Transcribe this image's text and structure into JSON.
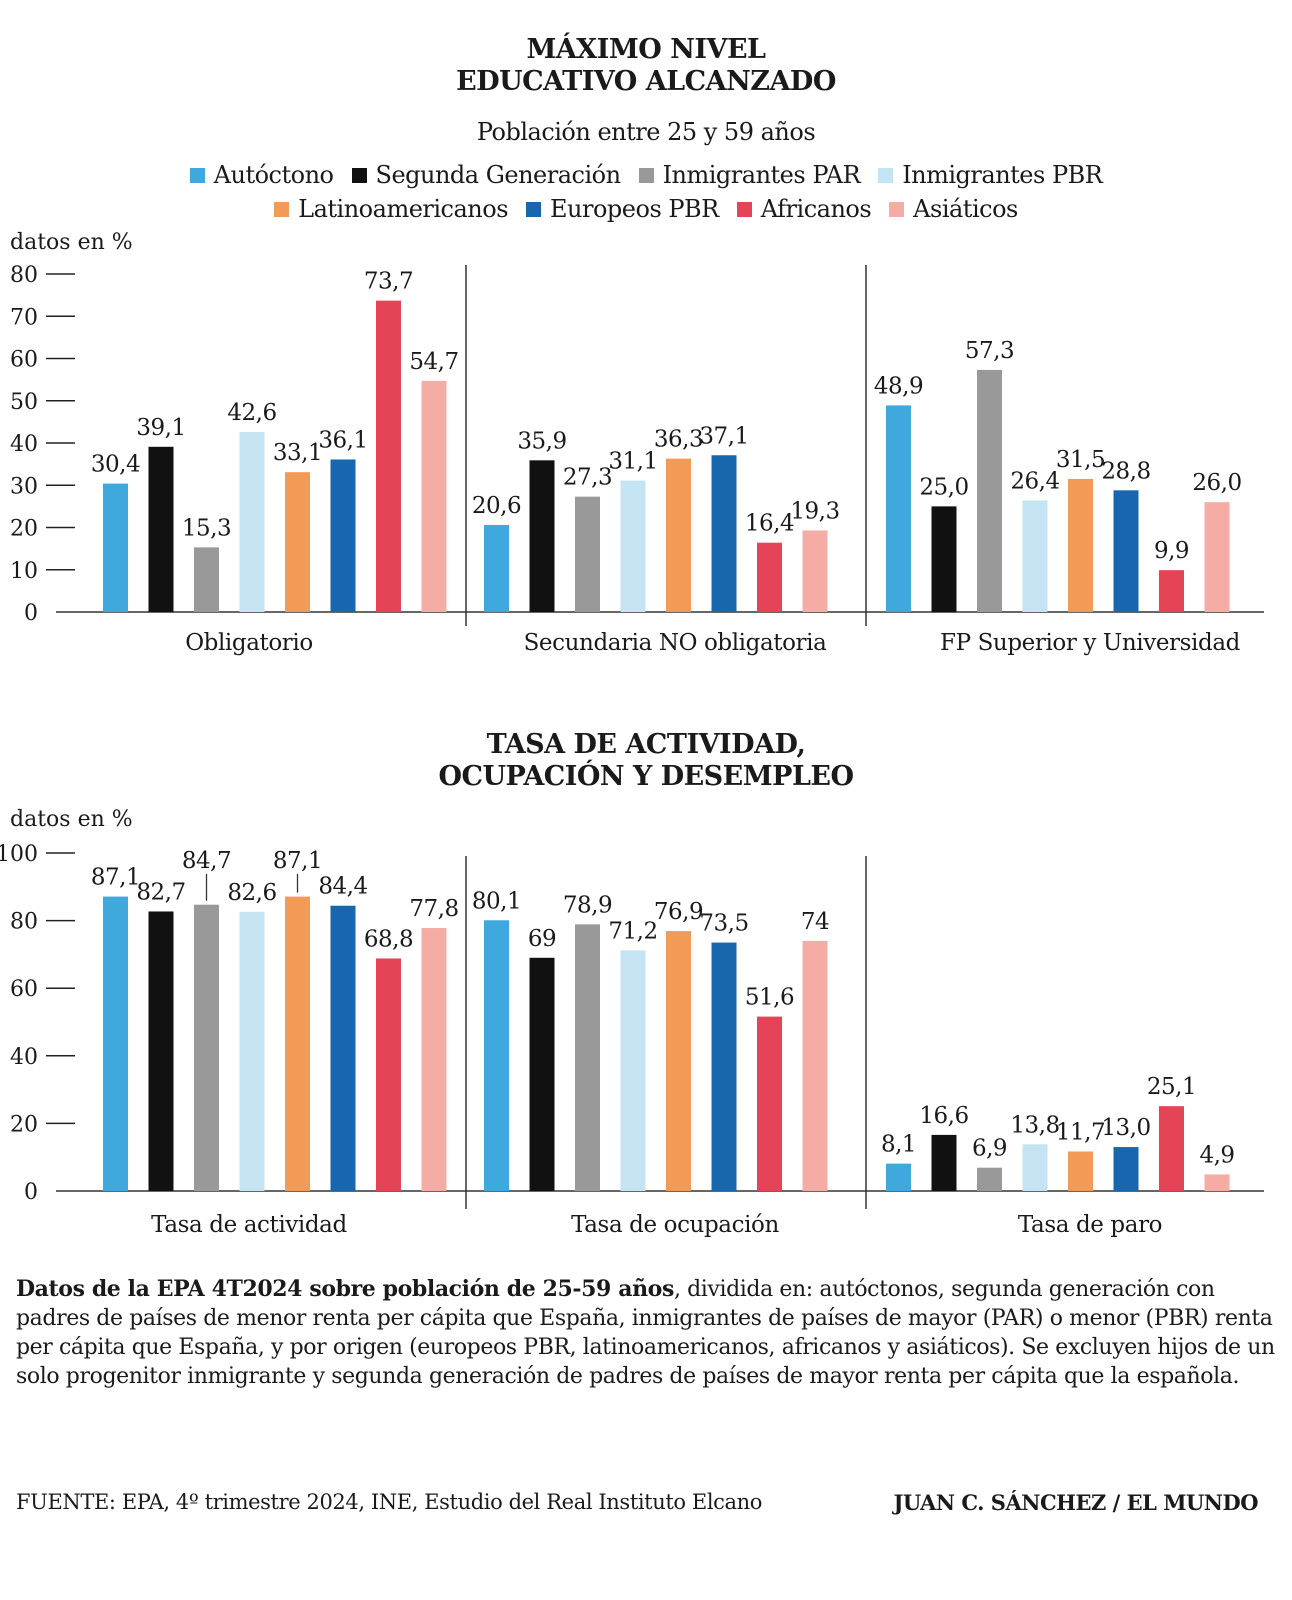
{
  "chart1": {
    "title_lines": [
      "MÁXIMO NIVEL",
      "EDUCATIVO ALCANZADO"
    ],
    "subtitle": "Población entre 25 y 59 años",
    "unit_label": "datos en %"
  },
  "chart2": {
    "title_lines": [
      "TASA DE ACTIVIDAD,",
      "OCUPACIÓN Y DESEMPLEO"
    ],
    "unit_label": "datos en %"
  },
  "legend": [
    {
      "label": "Autóctono",
      "color": "#3fa9de"
    },
    {
      "label": "Segunda Generación",
      "color": "#111111"
    },
    {
      "label": "Inmigrantes PAR",
      "color": "#999999"
    },
    {
      "label": "Inmigrantes PBR",
      "color": "#c4e3f3"
    },
    {
      "label": "Latinoamericanos",
      "color": "#f29b57"
    },
    {
      "label": "Europeos PBR",
      "color": "#1667ae"
    },
    {
      "label": "Africanos",
      "color": "#e54356"
    },
    {
      "label": "Asiáticos",
      "color": "#f4aca4"
    }
  ],
  "chart_data": [
    {
      "type": "bar",
      "title": "MÁXIMO NIVEL EDUCATIVO ALCANZADO",
      "subtitle": "Población entre 25 y 59 años",
      "ylabel": "datos en %",
      "ylim": [
        0,
        80
      ],
      "yticks": [
        0,
        10,
        20,
        30,
        40,
        50,
        60,
        70,
        80
      ],
      "grid": false,
      "categories": [
        "Obligatorio",
        "Secundaria NO obligatoria",
        "FP Superior y Universidad"
      ],
      "series": [
        {
          "name": "Autóctono",
          "values": [
            30.4,
            20.6,
            48.9
          ],
          "labels": [
            "30,4",
            "20,6",
            "48,9"
          ]
        },
        {
          "name": "Segunda Generación",
          "values": [
            39.1,
            35.9,
            25.0
          ],
          "labels": [
            "39,1",
            "35,9",
            "25,0"
          ]
        },
        {
          "name": "Inmigrantes PAR",
          "values": [
            15.3,
            27.3,
            57.3
          ],
          "labels": [
            "15,3",
            "27,3",
            "57,3"
          ]
        },
        {
          "name": "Inmigrantes PBR",
          "values": [
            42.6,
            31.1,
            26.4
          ],
          "labels": [
            "42,6",
            "31,1",
            "26,4"
          ]
        },
        {
          "name": "Latinoamericanos",
          "values": [
            33.1,
            36.3,
            31.5
          ],
          "labels": [
            "33,1",
            "36,3",
            "31,5"
          ]
        },
        {
          "name": "Europeos PBR",
          "values": [
            36.1,
            37.1,
            28.8
          ],
          "labels": [
            "36,1",
            "37,1",
            "28,8"
          ]
        },
        {
          "name": "Africanos",
          "values": [
            73.7,
            16.4,
            9.9
          ],
          "labels": [
            "73,7",
            "16,4",
            "9,9"
          ]
        },
        {
          "name": "Asiáticos",
          "values": [
            54.7,
            19.3,
            26.0
          ],
          "labels": [
            "54,7",
            "19,3",
            "26,0"
          ]
        }
      ]
    },
    {
      "type": "bar",
      "title": "TASA DE ACTIVIDAD, OCUPACIÓN Y DESEMPLEO",
      "ylabel": "datos en %",
      "ylim": [
        0,
        100
      ],
      "yticks": [
        0,
        20,
        40,
        60,
        80,
        100
      ],
      "grid": false,
      "categories": [
        "Tasa de actividad",
        "Tasa de ocupación",
        "Tasa de paro"
      ],
      "series": [
        {
          "name": "Autóctono",
          "values": [
            87.1,
            80.1,
            8.1
          ],
          "labels": [
            "87,1",
            "80,1",
            "8,1"
          ]
        },
        {
          "name": "Segunda Generación",
          "values": [
            82.7,
            69,
            16.6
          ],
          "labels": [
            "82,7",
            "69",
            "16,6"
          ]
        },
        {
          "name": "Inmigrantes PAR",
          "values": [
            84.7,
            78.9,
            6.9
          ],
          "labels": [
            "84,7",
            "78,9",
            "6,9"
          ]
        },
        {
          "name": "Inmigrantes PBR",
          "values": [
            82.6,
            71.2,
            13.8
          ],
          "labels": [
            "82,6",
            "71,2",
            "13,8"
          ]
        },
        {
          "name": "Latinoamericanos",
          "values": [
            87.1,
            76.9,
            11.7
          ],
          "labels": [
            "87,1",
            "76,9",
            "11,7"
          ]
        },
        {
          "name": "Europeos PBR",
          "values": [
            84.4,
            73.5,
            13.0
          ],
          "labels": [
            "84,4",
            "73,5",
            "13,0"
          ]
        },
        {
          "name": "Africanos",
          "values": [
            68.8,
            51.6,
            25.1
          ],
          "labels": [
            "68,8",
            "51,6",
            "25,1"
          ]
        },
        {
          "name": "Asiáticos",
          "values": [
            77.8,
            74,
            4.9
          ],
          "labels": [
            "77,8",
            "74",
            "4,9"
          ]
        }
      ]
    }
  ],
  "notes": {
    "bold_lead": "Datos de la EPA 4T2024 sobre población de 25-59 años",
    "text": ", dividida en: autóctonos, segunda generación con padres de países de menor renta per cápita que España, inmigrantes de países de mayor (PAR) o menor (PBR) renta per cápita que España, y por origen (europeos PBR, latinoamericanos, africanos y asiáticos). Se excluyen hijos de un solo progenitor inmigrante y segunda generación de padres de países de mayor renta per cápita que la española."
  },
  "source": "FUENTE: EPA, 4º trimestre 2024, INE, Estudio del Real Instituto Elcano",
  "credit": "JUAN C. SÁNCHEZ / EL MUNDO"
}
